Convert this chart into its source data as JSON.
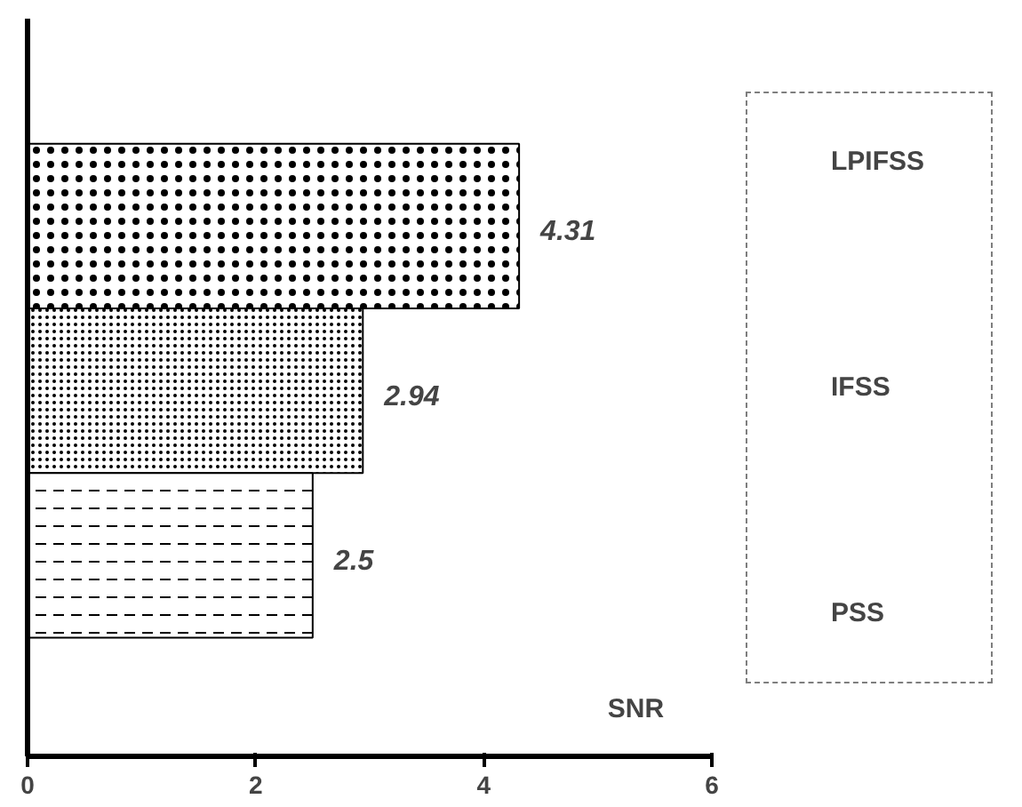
{
  "chart_data": {
    "type": "bar",
    "orientation": "horizontal",
    "xlabel": "SNR",
    "categories": [
      null,
      null,
      null
    ],
    "series": [
      {
        "name": "LPIFSS",
        "color": "#ffffff",
        "values": [
          4.31,
          null,
          null
        ]
      },
      {
        "name": "IFSS",
        "color": "#ffffff",
        "values": [
          null,
          2.94,
          null
        ]
      },
      {
        "name": "PSS",
        "color": "#ffffff",
        "values": [
          null,
          null,
          2.5
        ]
      }
    ],
    "xlim": [
      0,
      6
    ],
    "xticks": [
      0,
      2,
      4,
      6
    ],
    "tick_labels": "x",
    "data_labels": true,
    "legend": "right"
  }
}
